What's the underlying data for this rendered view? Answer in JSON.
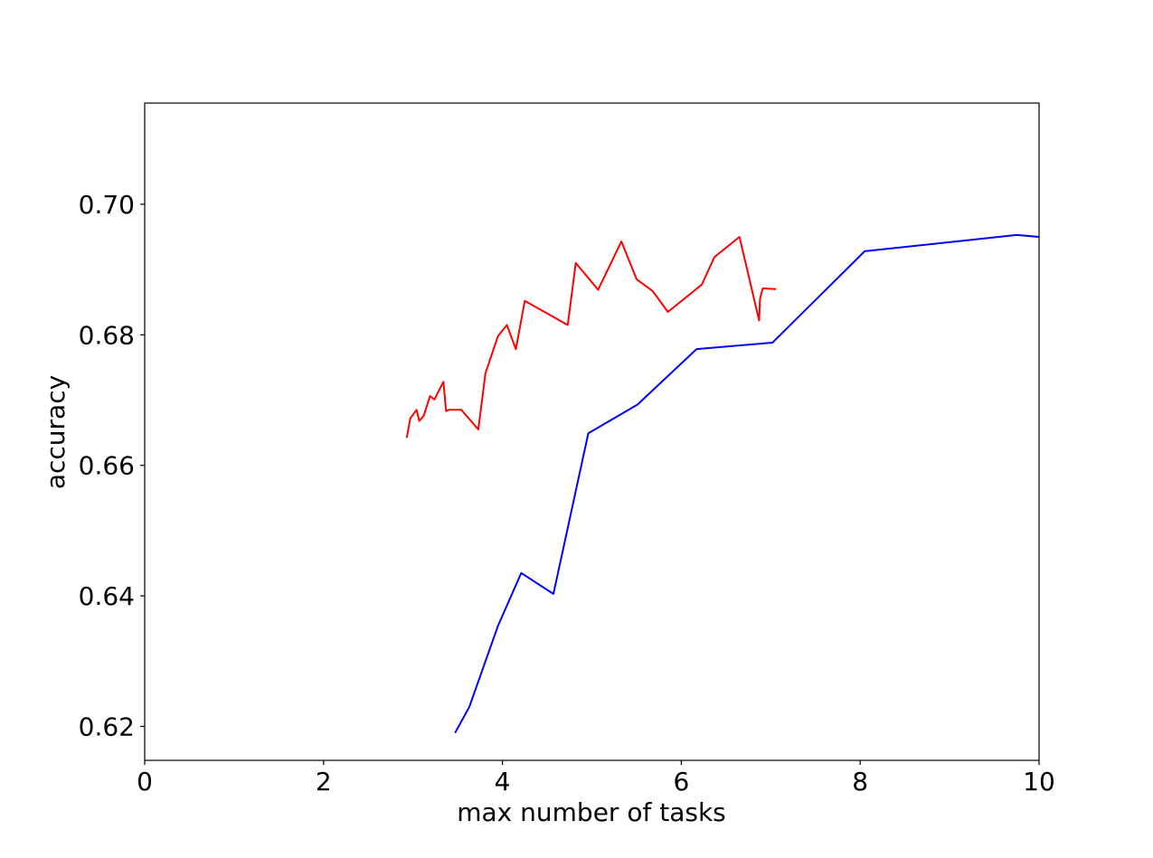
{
  "chart_data": {
    "type": "line",
    "title": "",
    "xlabel": "max number of tasks",
    "ylabel": "accuracy",
    "xlim": [
      0,
      10
    ],
    "ylim": [
      0.6148,
      0.7155
    ],
    "xticks": [
      0,
      2,
      4,
      6,
      8,
      10
    ],
    "xtick_labels": [
      "0",
      "2",
      "4",
      "6",
      "8",
      "10"
    ],
    "yticks": [
      0.62,
      0.64,
      0.66,
      0.68,
      0.7
    ],
    "ytick_labels": [
      "0.62",
      "0.64",
      "0.66",
      "0.68",
      "0.70"
    ],
    "grid": false,
    "legend": "none",
    "series": [
      {
        "color": "#ff0000",
        "x": [
          2.93,
          2.97,
          3.04,
          3.07,
          3.12,
          3.19,
          3.24,
          3.34,
          3.37,
          3.4,
          3.54,
          3.73,
          3.81,
          3.95,
          4.05,
          4.15,
          4.25,
          4.73,
          4.82,
          5.07,
          5.33,
          5.5,
          5.68,
          5.85,
          6.23,
          6.37,
          6.65,
          6.87,
          6.88,
          6.91,
          7.06
        ],
        "y": [
          0.6642,
          0.6672,
          0.6685,
          0.6668,
          0.6676,
          0.6706,
          0.6701,
          0.6728,
          0.6683,
          0.6685,
          0.6685,
          0.6655,
          0.6741,
          0.6798,
          0.6815,
          0.6778,
          0.6852,
          0.6815,
          0.691,
          0.6869,
          0.6943,
          0.6885,
          0.6867,
          0.6835,
          0.6877,
          0.6919,
          0.695,
          0.6822,
          0.6855,
          0.6871,
          0.687
        ]
      },
      {
        "color": "#0000ff",
        "x": [
          3.47,
          3.63,
          3.95,
          4.21,
          4.57,
          4.96,
          5.51,
          6.17,
          7.02,
          8.05,
          9.75,
          10.0
        ],
        "y": [
          0.619,
          0.623,
          0.6354,
          0.6435,
          0.6403,
          0.6649,
          0.6693,
          0.6778,
          0.6788,
          0.6928,
          0.6953,
          0.695
        ]
      }
    ]
  }
}
